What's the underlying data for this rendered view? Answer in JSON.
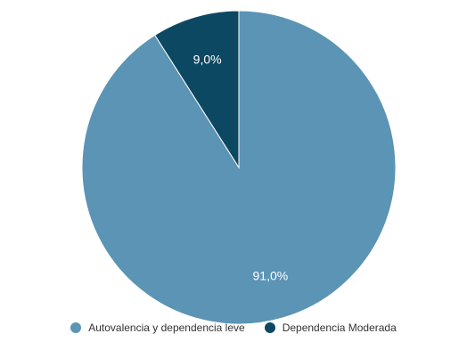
{
  "chart_data": {
    "type": "pie",
    "categories": [
      "Autovalencia y dependencia leve",
      "Dependencia Moderada"
    ],
    "values": [
      91.0,
      9.0
    ],
    "labels": [
      "91,0%",
      "9,0%"
    ],
    "colors": [
      "#5b94b5",
      "#0d4862"
    ],
    "legend_position": "bottom"
  },
  "legend": {
    "items": [
      {
        "label": "Autovalencia y dependencia leve",
        "color": "#5b94b5"
      },
      {
        "label": "Dependencia Moderada",
        "color": "#0d4862"
      }
    ]
  }
}
